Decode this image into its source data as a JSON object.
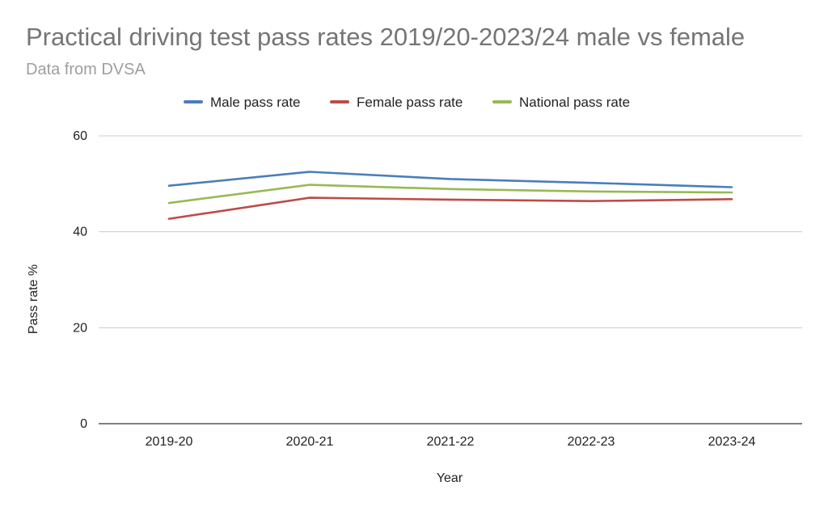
{
  "chart_data": {
    "type": "line",
    "title": "Practical driving test pass rates 2019/20-2023/24 male vs female",
    "subtitle": "Data from DVSA",
    "xlabel": "Year",
    "ylabel": "Pass rate %",
    "categories": [
      "2019-20",
      "2020-21",
      "2021-22",
      "2022-23",
      "2023-24"
    ],
    "series": [
      {
        "name": "Male pass rate",
        "color": "#4a7ebb",
        "values": [
          49.6,
          52.5,
          51.0,
          50.2,
          49.3
        ]
      },
      {
        "name": "Female pass rate",
        "color": "#be4b48",
        "values": [
          42.7,
          47.1,
          46.7,
          46.4,
          46.8
        ]
      },
      {
        "name": "National pass rate",
        "color": "#98b954",
        "values": [
          46.0,
          49.8,
          48.9,
          48.4,
          48.2
        ]
      }
    ],
    "ylim": [
      0,
      60
    ],
    "yticks": [
      0,
      20,
      40,
      60
    ],
    "grid": true,
    "legend_position": "top-center"
  }
}
